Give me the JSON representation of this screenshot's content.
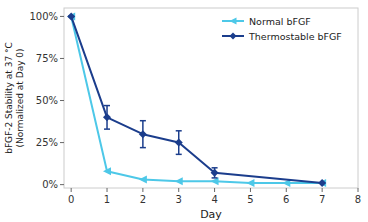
{
  "chart_data": {
    "type": "line",
    "xlabel": "Day",
    "ylabel": "bFGF-2 Stability at 37 °C\n(Normalized at Day 0)",
    "series": [
      {
        "name": "Normal bFGF",
        "color": "#4DC8E8",
        "marker": "triangle-left",
        "x": [
          0,
          1,
          2,
          3,
          4,
          5,
          6,
          7
        ],
        "values": [
          100,
          8,
          3,
          2,
          2,
          1,
          1,
          1
        ]
      },
      {
        "name": "Thermostable bFGF",
        "color": "#1B3D8C",
        "marker": "diamond",
        "x": [
          0,
          1,
          2,
          3,
          4,
          7
        ],
        "values": [
          100,
          40,
          30,
          25,
          7,
          1
        ],
        "errors": [
          0,
          7,
          8,
          7,
          3,
          0
        ]
      }
    ],
    "xlim": [
      -0.2,
      8
    ],
    "xticks": [
      0,
      1,
      2,
      3,
      4,
      5,
      6,
      7,
      8
    ],
    "ylim": [
      -2,
      105
    ],
    "yticks": [
      {
        "value": 0,
        "label": "0%"
      },
      {
        "value": 25,
        "label": "25%"
      },
      {
        "value": 50,
        "label": "50%"
      },
      {
        "value": 75,
        "label": "75%"
      },
      {
        "value": 100,
        "label": "100%"
      }
    ],
    "grid": false,
    "legend": "upper right"
  }
}
